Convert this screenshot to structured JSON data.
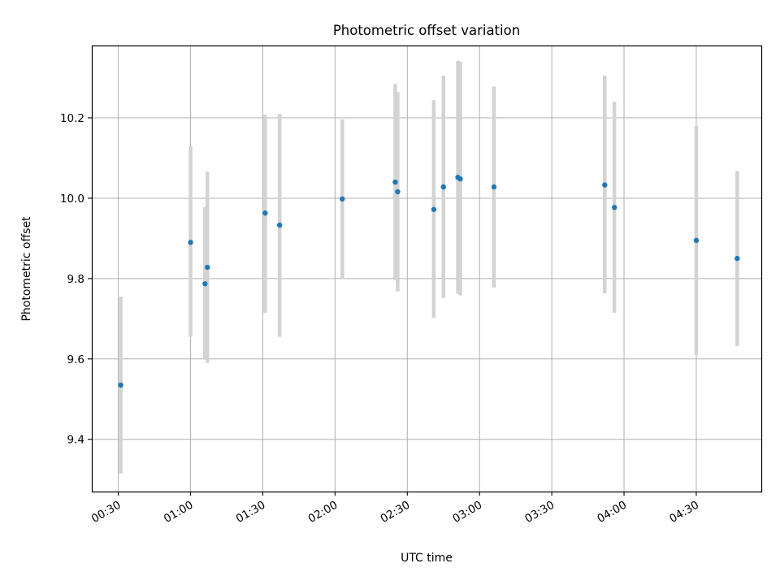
{
  "chart_data": {
    "type": "scatter",
    "title": "Photometric offset variation",
    "xlabel": "UTC time",
    "ylabel": "Photometric offset",
    "x_ticks": [
      "00:30",
      "01:00",
      "01:30",
      "02:00",
      "02:30",
      "03:00",
      "03:30",
      "04:00",
      "04:30"
    ],
    "xlim": [
      "00:19",
      "04:57"
    ],
    "y_ticks": [
      "9.4",
      "9.6",
      "9.8",
      "10.0",
      "10.2"
    ],
    "ylim": [
      9.27,
      10.38
    ],
    "grid": true,
    "error_bar_color": "#d3d3d3",
    "point_color": "#1f77b4",
    "points": [
      {
        "x": "00:31",
        "y": 9.535,
        "err_low": 9.315,
        "err_high": 9.755
      },
      {
        "x": "01:00",
        "y": 9.89,
        "err_low": 9.655,
        "err_high": 10.13
      },
      {
        "x": "01:06",
        "y": 9.787,
        "err_low": 9.598,
        "err_high": 9.978
      },
      {
        "x": "01:07",
        "y": 9.828,
        "err_low": 9.59,
        "err_high": 10.066
      },
      {
        "x": "01:31",
        "y": 9.963,
        "err_low": 9.715,
        "err_high": 10.208
      },
      {
        "x": "01:37",
        "y": 9.933,
        "err_low": 9.655,
        "err_high": 10.21
      },
      {
        "x": "02:03",
        "y": 9.998,
        "err_low": 9.8,
        "err_high": 10.196
      },
      {
        "x": "02:25",
        "y": 10.04,
        "err_low": 9.796,
        "err_high": 10.284
      },
      {
        "x": "02:26",
        "y": 10.016,
        "err_low": 9.768,
        "err_high": 10.264
      },
      {
        "x": "02:41",
        "y": 9.972,
        "err_low": 9.702,
        "err_high": 10.244
      },
      {
        "x": "02:45",
        "y": 10.028,
        "err_low": 9.752,
        "err_high": 10.305
      },
      {
        "x": "02:51",
        "y": 10.052,
        "err_low": 9.762,
        "err_high": 10.342
      },
      {
        "x": "02:52",
        "y": 10.048,
        "err_low": 9.758,
        "err_high": 10.34
      },
      {
        "x": "03:06",
        "y": 10.028,
        "err_low": 9.778,
        "err_high": 10.278
      },
      {
        "x": "03:52",
        "y": 10.033,
        "err_low": 9.763,
        "err_high": 10.305
      },
      {
        "x": "03:56",
        "y": 9.977,
        "err_low": 9.715,
        "err_high": 10.24
      },
      {
        "x": "04:30",
        "y": 9.895,
        "err_low": 9.61,
        "err_high": 10.18
      },
      {
        "x": "04:47",
        "y": 9.85,
        "err_low": 9.632,
        "err_high": 10.068
      }
    ]
  }
}
